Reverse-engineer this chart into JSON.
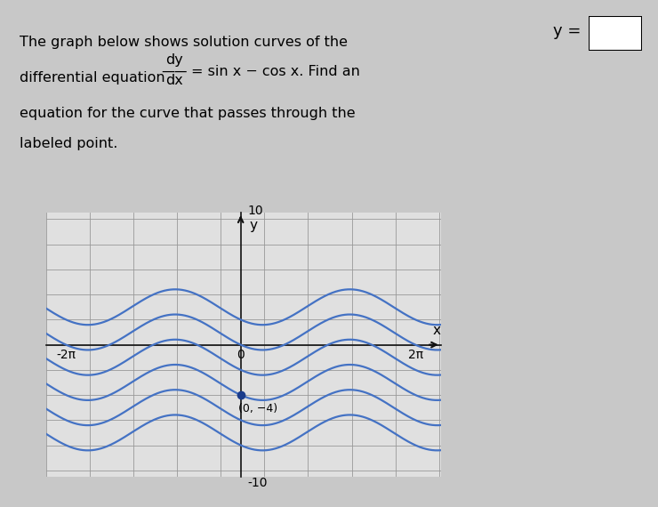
{
  "title_line1": "The graph below shows solution curves of the",
  "title_line2_left": "differential equation",
  "title_line2_right": "= sin x − cos x. Find an",
  "title_line3": "equation for the curve that passes through the",
  "title_line4": "labeled point.",
  "dy_text": "dy",
  "dx_text": "dx",
  "xlim": [
    -7.0,
    7.2
  ],
  "ylim": [
    -10.5,
    10.5
  ],
  "x_ticks_labels": [
    "-2π",
    "0",
    "2π"
  ],
  "x_ticks_vals": [
    -6.2831853,
    0,
    6.2831853
  ],
  "curve_color": "#4472C4",
  "curve_lw": 1.6,
  "C_values": [
    3,
    1,
    -1,
    -3,
    -5,
    -7
  ],
  "labeled_point": [
    0,
    -4
  ],
  "labeled_point_color": "#1a3c8c",
  "label_text": "(0, −4)",
  "bg_color": "#c8c8c8",
  "plot_bg_color": "#e0e0e0",
  "grid_color": "#999999",
  "grid_lw": 0.6,
  "axis_color": "#111111",
  "xlabel": "x",
  "ylabel": "y",
  "font_size_text": 11.5,
  "font_size_tick": 10
}
